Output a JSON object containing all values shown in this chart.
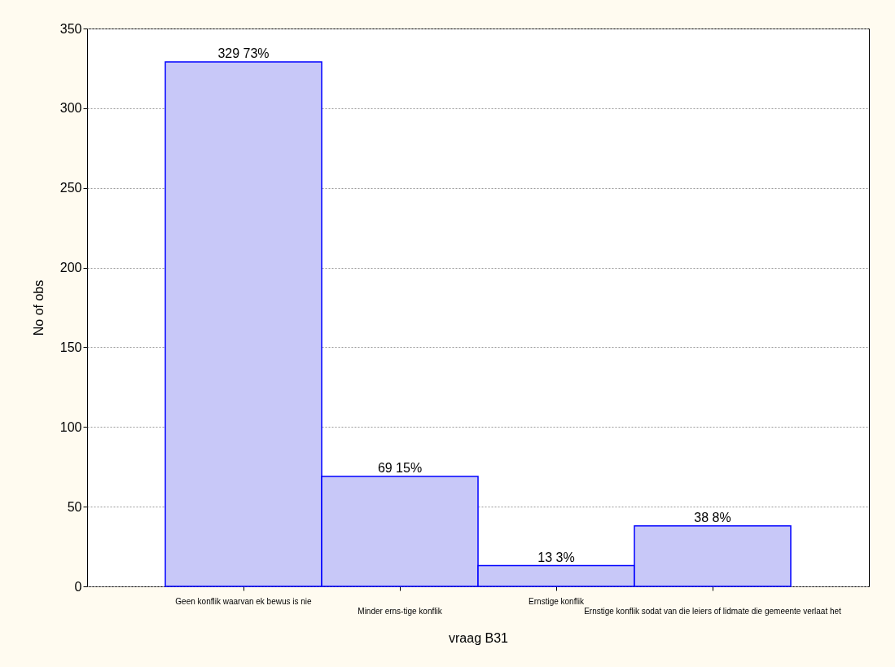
{
  "chart_data": {
    "type": "bar",
    "xlabel": "vraag B31",
    "ylabel": "No of obs",
    "categories": [
      "Geen konflik waarvan ek bewus is nie",
      "Minder erns-tige konflik",
      "Ernstige konflik",
      "Ernstige konflik sodat van die leiers of lidmate die gemeente verlaat het"
    ],
    "values": [
      329,
      69,
      13,
      38
    ],
    "color": "#c8c8f8",
    "value_labels": [
      "329 73%",
      "69 15%",
      "13 3%",
      "38 8%"
    ],
    "ylim": [
      0,
      350
    ],
    "yticks": [
      0,
      50,
      100,
      150,
      200,
      250,
      300,
      350
    ],
    "grid": "y"
  }
}
